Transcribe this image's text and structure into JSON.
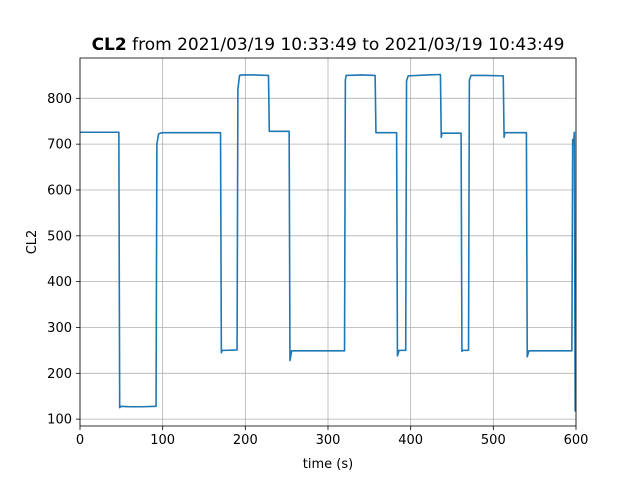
{
  "chart_data": {
    "type": "line",
    "title_bold": "CL2",
    "title_rest": " from 2021/03/19 10:33:49 to 2021/03/19 10:43:49",
    "xlabel": "time (s)",
    "ylabel": "CL2",
    "xlim": [
      0,
      600
    ],
    "ylim": [
      85,
      888
    ],
    "xticks": [
      0,
      100,
      200,
      300,
      400,
      500,
      600
    ],
    "yticks": [
      100,
      200,
      300,
      400,
      500,
      600,
      700,
      800
    ],
    "grid": true,
    "color": "#1f77b4",
    "series": [
      {
        "x": [
          0,
          47,
          48,
          50,
          60,
          75,
          92,
          93,
          95,
          97,
          100,
          130,
          170,
          171,
          172,
          175,
          190,
          191,
          193,
          196,
          210,
          228,
          229,
          245,
          253,
          254,
          256,
          270,
          320,
          321,
          322,
          340,
          357,
          358,
          370,
          383,
          384,
          386,
          394,
          395,
          397,
          420,
          436,
          437,
          438,
          440,
          455,
          461,
          462,
          463,
          470,
          471,
          473,
          490,
          512,
          513,
          514,
          516,
          530,
          540,
          541,
          543,
          560,
          595,
          596,
          597,
          598,
          599,
          600
        ],
        "y": [
          726,
          726,
          125,
          128,
          127,
          127,
          128,
          700,
          722,
          724,
          725,
          725,
          725,
          245,
          250,
          250,
          251,
          820,
          850,
          851,
          851,
          850,
          728,
          728,
          728,
          228,
          249,
          249,
          249,
          840,
          850,
          851,
          850,
          725,
          725,
          725,
          238,
          250,
          250,
          838,
          849,
          851,
          852,
          715,
          724,
          724,
          724,
          724,
          248,
          250,
          250,
          840,
          850,
          850,
          849,
          715,
          725,
          725,
          725,
          725,
          236,
          249,
          249,
          249,
          710,
          700,
          726,
          118,
          118
        ]
      }
    ]
  }
}
